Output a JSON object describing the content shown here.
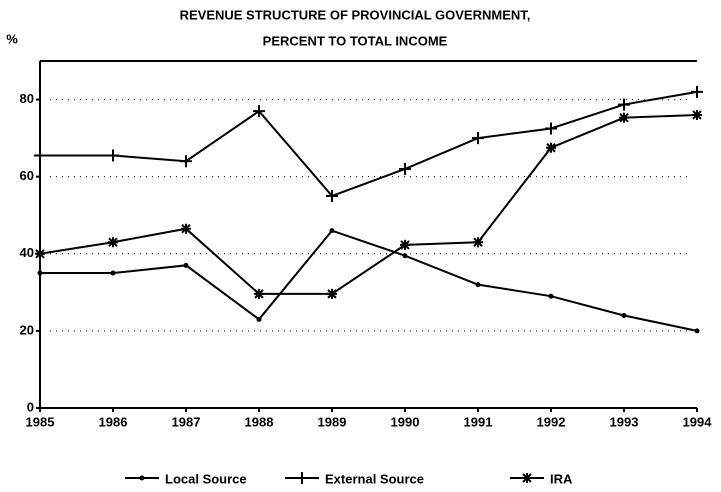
{
  "chart_data": {
    "type": "line",
    "title": [
      "REVENUE STRUCTURE OF PROVINCIAL GOVERNMENT,",
      "PERCENT TO TOTAL INCOME"
    ],
    "ylabel": "%",
    "categories": [
      "1985",
      "1986",
      "1987",
      "1988",
      "1989",
      "1990",
      "1991",
      "1992",
      "1993",
      "1994"
    ],
    "series": [
      {
        "name": "Local Source",
        "color": "#000000",
        "marker": "dot",
        "values": [
          35,
          35,
          37,
          23,
          46,
          39.5,
          32,
          29,
          24,
          20
        ]
      },
      {
        "name": "External Source",
        "color": "#000000",
        "marker": "plus",
        "values": [
          65.5,
          65.5,
          64,
          77,
          55,
          62,
          70,
          72.5,
          78.7,
          82
        ]
      },
      {
        "name": "IRA",
        "color": "#000000",
        "marker": "star",
        "values": [
          40,
          43,
          46.5,
          29.6,
          29.6,
          42.3,
          43,
          67.5,
          75.3,
          76
        ]
      }
    ],
    "ylim": [
      0,
      90
    ],
    "yticks": [
      0,
      20,
      40,
      60,
      80
    ],
    "grid": true
  }
}
